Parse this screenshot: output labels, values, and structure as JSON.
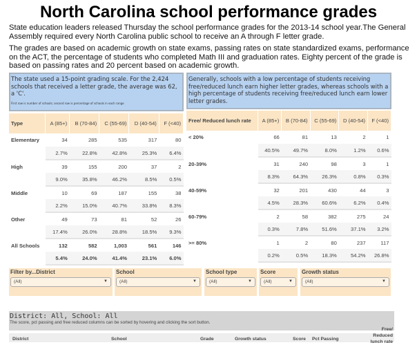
{
  "title": "North Carolina school performance grades",
  "intro": [
    "State education leaders released Thursday the school performance grades for the 2013-14 school year.The General Assembly required every North Carolina public school to receive an A through F letter grade.",
    "The grades are based on academic growth on state exams, passing rates on state standardized exams, performance on the ACT, the percentage of students who completed Math III and graduation rates. Eighty percent of the grade is based on passing rates and 20 percent based on academic growth."
  ],
  "left_note": {
    "text": "The state used a 15-point grading scale. For the 2,424 schools that received a letter grade, the average was 62, a 'C'.",
    "footnote": "First row is number of schools; second row is percentage of schools in each range"
  },
  "right_note": {
    "text": "Generally, schools with a low percentage of students receiving free/reduced lunch earn higher letter grades, whereas schools with a high percentage of students receiving free/reduced lunch earn lower letter grades."
  },
  "type_table": {
    "headers": [
      "Type",
      "A (85+)",
      "B (70-84)",
      "C (55-69)",
      "D (40-54)",
      "F (<40)"
    ],
    "rows": [
      {
        "label": "Elementary",
        "counts": [
          "34",
          "285",
          "535",
          "317",
          "80"
        ],
        "pcts": [
          "2.7%",
          "22.8%",
          "42.8%",
          "25.3%",
          "6.4%"
        ]
      },
      {
        "label": "High",
        "counts": [
          "39",
          "155",
          "200",
          "37",
          "2"
        ],
        "pcts": [
          "9.0%",
          "35.8%",
          "46.2%",
          "8.5%",
          "0.5%"
        ]
      },
      {
        "label": "Middle",
        "counts": [
          "10",
          "69",
          "187",
          "155",
          "38"
        ],
        "pcts": [
          "2.2%",
          "15.0%",
          "40.7%",
          "33.8%",
          "8.3%"
        ]
      },
      {
        "label": "Other",
        "counts": [
          "49",
          "73",
          "81",
          "52",
          "26"
        ],
        "pcts": [
          "17.4%",
          "26.0%",
          "28.8%",
          "18.5%",
          "9.3%"
        ]
      },
      {
        "label": "All Schools",
        "counts": [
          "132",
          "582",
          "1,003",
          "561",
          "146"
        ],
        "pcts": [
          "5.4%",
          "24.0%",
          "41.4%",
          "23.1%",
          "6.0%"
        ],
        "bold": true
      }
    ]
  },
  "lunch_table": {
    "headers": [
      "Free/ Reduced lunch rate",
      "A (85+)",
      "B (70-84)",
      "C (55-69)",
      "D (40-54)",
      "F (<40)"
    ],
    "rows": [
      {
        "label": "< 20%",
        "counts": [
          "66",
          "81",
          "13",
          "2",
          "1"
        ],
        "pcts": [
          "40.5%",
          "49.7%",
          "8.0%",
          "1.2%",
          "0.6%"
        ]
      },
      {
        "label": "20-39%",
        "counts": [
          "31",
          "240",
          "98",
          "3",
          "1"
        ],
        "pcts": [
          "8.3%",
          "64.3%",
          "26.3%",
          "0.8%",
          "0.3%"
        ]
      },
      {
        "label": "40-59%",
        "counts": [
          "32",
          "201",
          "430",
          "44",
          "3"
        ],
        "pcts": [
          "4.5%",
          "28.3%",
          "60.6%",
          "6.2%",
          "0.4%"
        ]
      },
      {
        "label": "60-79%",
        "counts": [
          "2",
          "58",
          "382",
          "275",
          "24"
        ],
        "pcts": [
          "0.3%",
          "7.8%",
          "51.6%",
          "37.1%",
          "3.2%"
        ]
      },
      {
        "label": ">= 80%",
        "counts": [
          "1",
          "2",
          "80",
          "237",
          "117"
        ],
        "pcts": [
          "0.2%",
          "0.5%",
          "18.3%",
          "54.2%",
          "26.8%"
        ]
      }
    ]
  },
  "filters": [
    {
      "label": "Filter by...District",
      "value": "(All)"
    },
    {
      "label": "School",
      "value": "(All)"
    },
    {
      "label": "School type",
      "value": "(All)"
    },
    {
      "label": "Score",
      "value": "(All)"
    },
    {
      "label": "Growth status",
      "value": "(All)"
    }
  ],
  "results": {
    "heading": "District: All, School: All",
    "subtitle": "The score, pct passing and free reduced columns can be sorted by hovering and clicking the sort button.",
    "columns": [
      "District",
      "School",
      "Grade",
      "Growth status",
      "Score",
      "Pct Passing",
      "Free/ Reduced lunch rate"
    ]
  },
  "colors": {
    "note_bg": "#b7d2f1",
    "header_bg": "#fbe5c5",
    "district_bar": "#d4d4d4"
  }
}
